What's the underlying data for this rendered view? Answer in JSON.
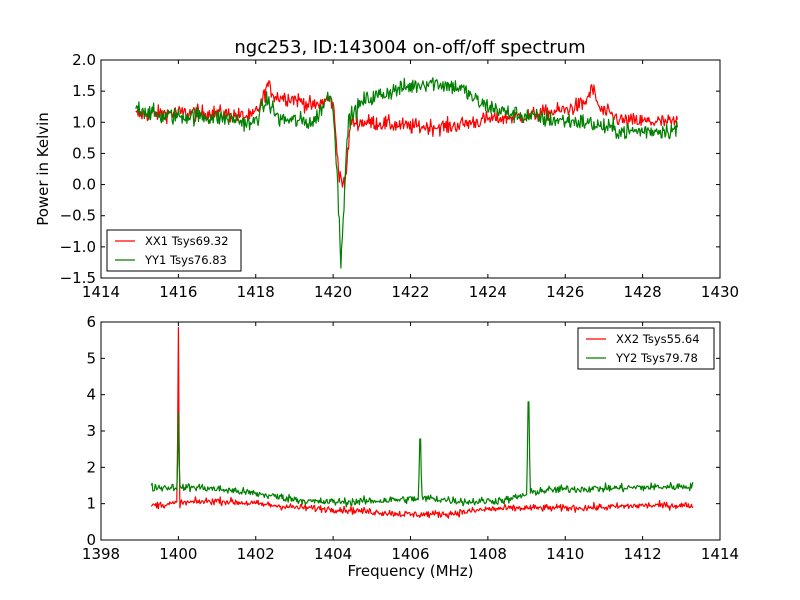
{
  "title": "ngc253, ID:143004 on-off/off spectrum",
  "colors": {
    "xx": "#ff0000",
    "yy": "#008000"
  },
  "chart_data": [
    {
      "type": "line",
      "title": "ngc253, ID:143004 on-off/off spectrum",
      "xlabel": "",
      "ylabel": "Power in Kelvin",
      "xlim": [
        1414,
        1430
      ],
      "ylim": [
        -1.5,
        2.0
      ],
      "xticks": [
        1414,
        1416,
        1418,
        1420,
        1422,
        1424,
        1426,
        1428,
        1430
      ],
      "xtick_labels": [
        "1414",
        "1416",
        "1418",
        "1420",
        "1422",
        "1424",
        "1426",
        "1428",
        "1430"
      ],
      "yticks": [
        -1.5,
        -1.0,
        -0.5,
        0.0,
        0.5,
        1.0,
        1.5,
        2.0
      ],
      "ytick_labels": [
        "−1.5",
        "−1.0",
        "−0.5",
        "0.0",
        "0.5",
        "1.0",
        "1.5",
        "2.0"
      ],
      "grid": false,
      "legend_position": "lower-left",
      "x_range": [
        1414.9,
        1428.9
      ],
      "series": [
        {
          "name": "XX1 Tsys69.32",
          "color": "#ff0000",
          "noise": 0.09,
          "profile": [
            [
              1414.9,
              1.12
            ],
            [
              1416.0,
              1.15
            ],
            [
              1417.0,
              1.15
            ],
            [
              1417.9,
              1.08
            ],
            [
              1418.15,
              1.3
            ],
            [
              1418.3,
              1.6
            ],
            [
              1418.5,
              1.42
            ],
            [
              1419.0,
              1.38
            ],
            [
              1419.5,
              1.25
            ],
            [
              1419.9,
              1.38
            ],
            [
              1420.0,
              1.3
            ],
            [
              1420.15,
              0.2
            ],
            [
              1420.3,
              -0.05
            ],
            [
              1420.45,
              1.0
            ],
            [
              1421.0,
              1.0
            ],
            [
              1422.0,
              0.93
            ],
            [
              1423.0,
              0.93
            ],
            [
              1424.0,
              1.05
            ],
            [
              1425.0,
              1.1
            ],
            [
              1426.0,
              1.2
            ],
            [
              1426.5,
              1.3
            ],
            [
              1426.7,
              1.55
            ],
            [
              1426.9,
              1.2
            ],
            [
              1427.5,
              1.02
            ],
            [
              1428.9,
              1.0
            ]
          ]
        },
        {
          "name": "YY1 Tsys76.83",
          "color": "#008000",
          "noise": 0.1,
          "profile": [
            [
              1414.9,
              1.25
            ],
            [
              1415.5,
              1.1
            ],
            [
              1416.5,
              1.1
            ],
            [
              1417.5,
              1.05
            ],
            [
              1417.9,
              0.95
            ],
            [
              1418.15,
              1.2
            ],
            [
              1418.3,
              1.35
            ],
            [
              1418.6,
              1.05
            ],
            [
              1419.5,
              1.0
            ],
            [
              1419.9,
              1.45
            ],
            [
              1420.0,
              1.3
            ],
            [
              1420.1,
              0.2
            ],
            [
              1420.2,
              -1.22
            ],
            [
              1420.3,
              0.0
            ],
            [
              1420.4,
              1.05
            ],
            [
              1420.8,
              1.35
            ],
            [
              1421.5,
              1.5
            ],
            [
              1422.5,
              1.65
            ],
            [
              1423.3,
              1.55
            ],
            [
              1423.8,
              1.3
            ],
            [
              1424.5,
              1.15
            ],
            [
              1425.5,
              1.05
            ],
            [
              1426.5,
              1.0
            ],
            [
              1427.5,
              0.85
            ],
            [
              1428.9,
              0.88
            ]
          ]
        }
      ]
    },
    {
      "type": "line",
      "title": "",
      "xlabel": "Frequency (MHz)",
      "ylabel": "",
      "xlim": [
        1398,
        1414
      ],
      "ylim": [
        0,
        6
      ],
      "xticks": [
        1398,
        1400,
        1402,
        1404,
        1406,
        1408,
        1410,
        1412,
        1414
      ],
      "xtick_labels": [
        "1398",
        "1400",
        "1402",
        "1404",
        "1406",
        "1408",
        "1410",
        "1412",
        "1414"
      ],
      "yticks": [
        0,
        1,
        2,
        3,
        4,
        5,
        6
      ],
      "ytick_labels": [
        "0",
        "1",
        "2",
        "3",
        "4",
        "5",
        "6"
      ],
      "grid": false,
      "legend_position": "upper-right",
      "x_range": [
        1399.3,
        1413.3
      ],
      "series": [
        {
          "name": "XX2 Tsys55.64",
          "color": "#ff0000",
          "noise": 0.07,
          "spikes": [
            [
              1400.0,
              5.85
            ]
          ],
          "profile": [
            [
              1399.3,
              0.95
            ],
            [
              1400.5,
              1.05
            ],
            [
              1401.0,
              1.08
            ],
            [
              1402.0,
              1.0
            ],
            [
              1403.0,
              0.9
            ],
            [
              1404.0,
              0.85
            ],
            [
              1405.0,
              0.78
            ],
            [
              1406.0,
              0.7
            ],
            [
              1407.0,
              0.72
            ],
            [
              1408.0,
              0.85
            ],
            [
              1409.0,
              0.88
            ],
            [
              1410.0,
              0.88
            ],
            [
              1411.0,
              0.9
            ],
            [
              1412.0,
              0.95
            ],
            [
              1413.3,
              0.95
            ]
          ]
        },
        {
          "name": "YY2 Tsys79.78",
          "color": "#008000",
          "noise": 0.08,
          "spikes": [
            [
              1400.0,
              3.5
            ],
            [
              1406.25,
              2.78
            ],
            [
              1409.05,
              3.8
            ]
          ],
          "profile": [
            [
              1399.3,
              1.45
            ],
            [
              1400.5,
              1.45
            ],
            [
              1401.5,
              1.35
            ],
            [
              1402.5,
              1.2
            ],
            [
              1403.5,
              1.05
            ],
            [
              1404.5,
              1.05
            ],
            [
              1405.5,
              1.1
            ],
            [
              1406.5,
              1.15
            ],
            [
              1407.5,
              1.05
            ],
            [
              1408.5,
              1.1
            ],
            [
              1409.3,
              1.35
            ],
            [
              1410.0,
              1.4
            ],
            [
              1411.0,
              1.42
            ],
            [
              1412.0,
              1.45
            ],
            [
              1413.3,
              1.48
            ]
          ]
        }
      ]
    }
  ]
}
